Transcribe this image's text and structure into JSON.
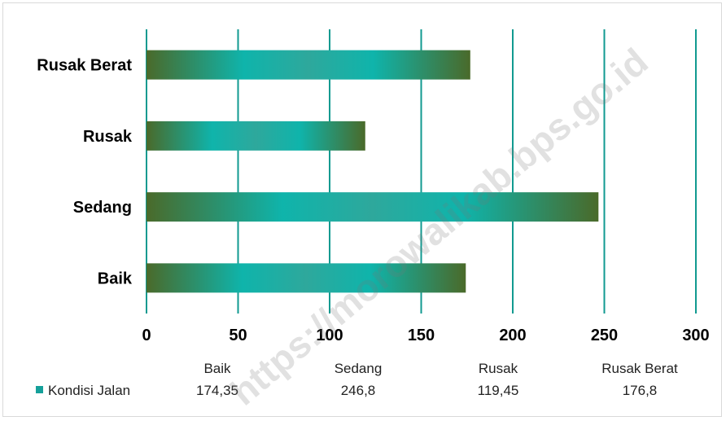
{
  "chart_data": {
    "type": "bar",
    "orientation": "horizontal",
    "categories": [
      "Baik",
      "Sedang",
      "Rusak",
      "Rusak Berat"
    ],
    "series": [
      {
        "name": "Kondisi Jalan",
        "values": [
          174.35,
          246.8,
          119.45,
          176.8
        ]
      }
    ],
    "value_labels": [
      "174,35",
      "246,8",
      "119,45",
      "176,8"
    ],
    "xlim": [
      0,
      300
    ],
    "xticks": [
      0,
      50,
      100,
      150,
      200,
      250,
      300
    ],
    "grid": true,
    "legend": "bottom-left data table",
    "colors": {
      "bar_edge": "#4a6a2a",
      "bar_center": "#1fb3a8",
      "grid": "#119a90",
      "legend_swatch": "#15a09a"
    }
  },
  "watermark": "https://morowalikab.bps.go.id"
}
